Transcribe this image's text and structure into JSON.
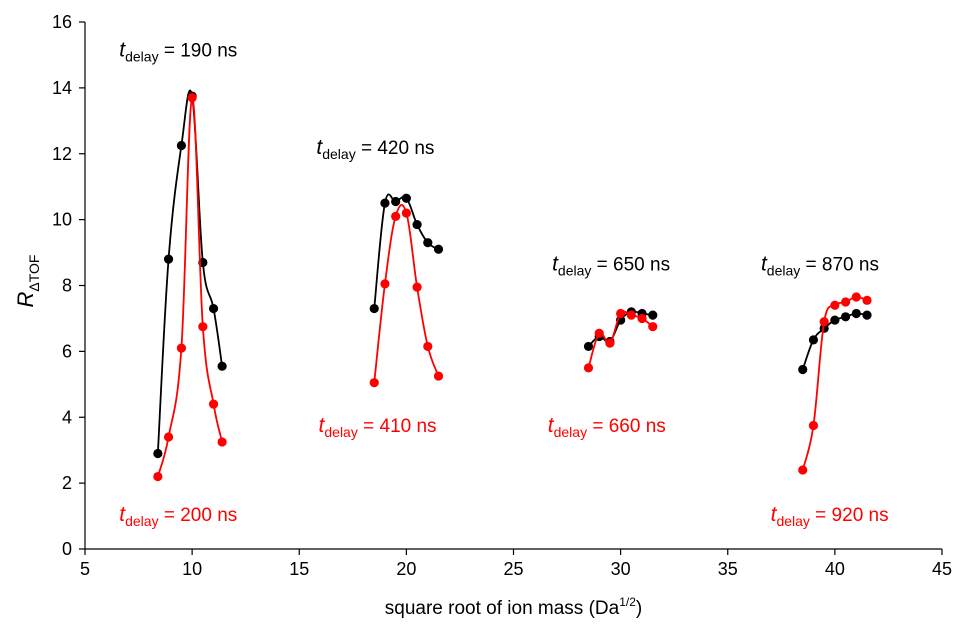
{
  "chart_data": {
    "type": "line",
    "xlabel": "square root of ion mass  (Da",
    "xlabel_sup": "1/2",
    "xlabel_close": ")",
    "ylabel_main": "R",
    "ylabel_sub": "ΔTOF",
    "xlim": [
      5,
      45
    ],
    "ylim": [
      0,
      16
    ],
    "xticks": [
      5,
      10,
      15,
      20,
      25,
      30,
      35,
      40,
      45
    ],
    "yticks": [
      0,
      2,
      4,
      6,
      8,
      10,
      12,
      14,
      16
    ],
    "grid": false,
    "legend": "none",
    "colors": {
      "black": "#000000",
      "red": "#ff0000"
    },
    "series": [
      {
        "color": "black",
        "x": [
          8.4,
          8.9,
          9.5,
          10.0,
          10.5,
          11.0,
          11.4
        ],
        "y": [
          2.9,
          8.8,
          12.25,
          13.75,
          8.7,
          7.3,
          5.55
        ]
      },
      {
        "color": "red",
        "x": [
          8.4,
          8.9,
          9.5,
          10.0,
          10.5,
          11.0,
          11.4
        ],
        "y": [
          2.2,
          3.4,
          6.1,
          13.7,
          6.75,
          4.4,
          3.25
        ]
      },
      {
        "color": "black",
        "x": [
          18.5,
          19.0,
          19.5,
          20.0,
          20.5,
          21.0,
          21.5
        ],
        "y": [
          7.3,
          10.5,
          10.55,
          10.65,
          9.85,
          9.3,
          9.1
        ]
      },
      {
        "color": "red",
        "x": [
          18.5,
          19.0,
          19.5,
          20.0,
          20.5,
          21.0,
          21.5
        ],
        "y": [
          5.05,
          8.05,
          10.1,
          10.2,
          7.95,
          6.15,
          5.25
        ]
      },
      {
        "color": "black",
        "x": [
          28.5,
          29.0,
          29.5,
          30.0,
          30.5,
          31.0,
          31.5
        ],
        "y": [
          6.15,
          6.45,
          6.3,
          6.95,
          7.2,
          7.15,
          7.1
        ]
      },
      {
        "color": "red",
        "x": [
          28.5,
          29.0,
          29.5,
          30.0,
          30.5,
          31.0,
          31.5
        ],
        "y": [
          5.5,
          6.55,
          6.25,
          7.15,
          7.1,
          7.0,
          6.75
        ]
      },
      {
        "color": "black",
        "x": [
          38.5,
          39.0,
          39.5,
          40.0,
          40.5,
          41.0,
          41.5
        ],
        "y": [
          5.45,
          6.35,
          6.7,
          6.95,
          7.05,
          7.15,
          7.1
        ]
      },
      {
        "color": "red",
        "x": [
          38.5,
          39.0,
          39.5,
          40.0,
          40.5,
          41.0,
          41.5
        ],
        "y": [
          2.4,
          3.75,
          6.9,
          7.4,
          7.5,
          7.65,
          7.55
        ]
      }
    ],
    "annotations": [
      {
        "color": "black",
        "italic": "t",
        "sub": "delay",
        "rest": " = 190 ns",
        "x": 6.6,
        "y": 14.95
      },
      {
        "color": "black",
        "italic": "t",
        "sub": "delay",
        "rest": " = 420 ns",
        "x": 15.8,
        "y": 12.0
      },
      {
        "color": "black",
        "italic": "t",
        "sub": "delay",
        "rest": " = 650 ns",
        "x": 26.8,
        "y": 8.45
      },
      {
        "color": "black",
        "italic": "t",
        "sub": "delay",
        "rest": " = 870 ns",
        "x": 36.55,
        "y": 8.45
      },
      {
        "color": "red",
        "italic": "t",
        "sub": "delay",
        "rest": " = 200 ns",
        "x": 6.6,
        "y": 0.85
      },
      {
        "color": "red",
        "italic": "t",
        "sub": "delay",
        "rest": " = 410 ns",
        "x": 15.9,
        "y": 3.55
      },
      {
        "color": "red",
        "italic": "t",
        "sub": "delay",
        "rest": " = 660 ns",
        "x": 26.6,
        "y": 3.55
      },
      {
        "color": "red",
        "italic": "t",
        "sub": "delay",
        "rest": " = 920 ns",
        "x": 37.0,
        "y": 0.85
      }
    ]
  }
}
